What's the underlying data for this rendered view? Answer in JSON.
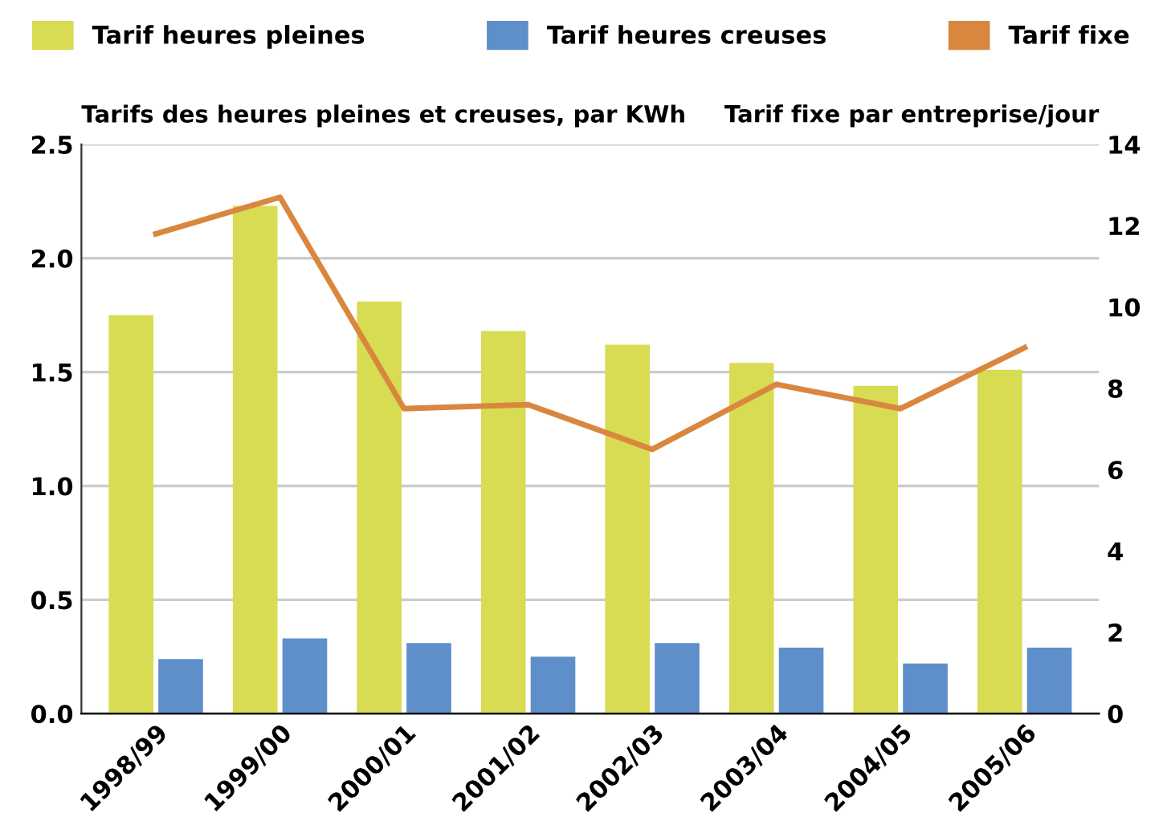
{
  "chart_data": {
    "type": "bar",
    "ylabel": "Tarifs des heures pleines et creuses, par KWh",
    "y2label": "Tarif fixe par entreprise/jour",
    "categories": [
      "1998/99",
      "1999/00",
      "2000/01",
      "2001/02",
      "2002/03",
      "2003/04",
      "2004/05",
      "2005/06"
    ],
    "series": [
      {
        "name": "Tarif heures pleines",
        "color": "#d8dc52",
        "values": [
          1.75,
          2.23,
          1.81,
          1.68,
          1.62,
          1.54,
          1.44,
          1.51
        ]
      },
      {
        "name": "Tarif heures creuses",
        "color": "#5e8fca",
        "values": [
          0.24,
          0.33,
          0.31,
          0.25,
          0.31,
          0.29,
          0.22,
          0.29
        ]
      },
      {
        "name": "Tarif fixe",
        "type": "line",
        "axis": "y2",
        "color": "#d9873f",
        "values": [
          11.8,
          12.7,
          7.5,
          7.6,
          6.5,
          8.1,
          7.5,
          9.0
        ]
      }
    ],
    "ylim": [
      0,
      2.5
    ],
    "yticks": [
      {
        "value": 0,
        "label": "0.0"
      },
      {
        "value": 0.5,
        "label": "0.5"
      },
      {
        "value": 1.0,
        "label": "1.0"
      },
      {
        "value": 1.5,
        "label": "1.5"
      },
      {
        "value": 2.0,
        "label": "2.0"
      },
      {
        "value": 2.5,
        "label": "2.5"
      }
    ],
    "y2lim": [
      0,
      14
    ],
    "y2ticks": [
      0,
      2,
      4,
      6,
      8,
      10,
      12,
      14
    ],
    "grid": "y",
    "legend": "top",
    "marker": "none",
    "line_style": "solid"
  }
}
